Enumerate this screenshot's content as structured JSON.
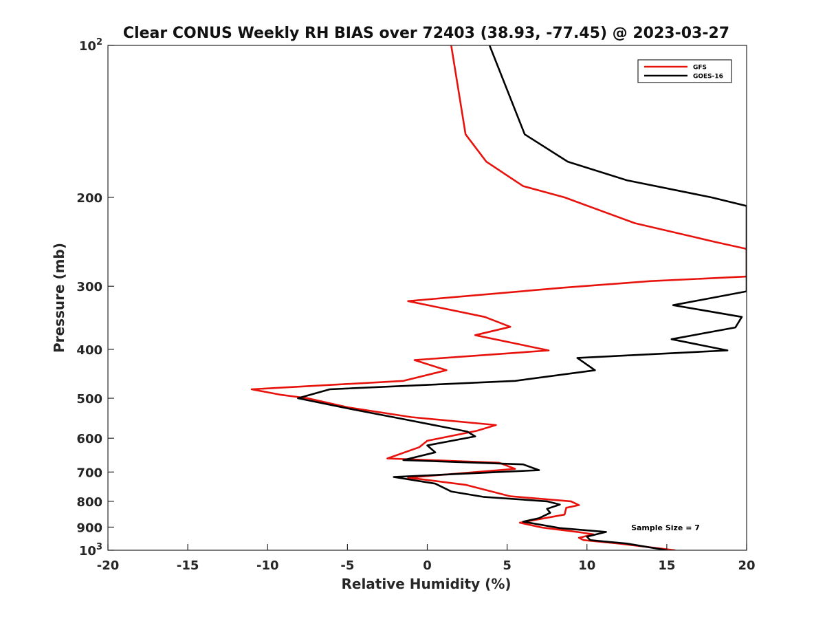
{
  "chart_data": {
    "type": "line",
    "title": "Clear CONUS Weekly RH BIAS over 72403 (38.93, -77.45) @ 2023-03-27",
    "xlabel": "Relative Humidity (%)",
    "ylabel": "Pressure (mb)",
    "xlim": [
      -20,
      20
    ],
    "ylim": [
      100,
      1000
    ],
    "y_scale": "log",
    "y_reversed": true,
    "xticks": [
      -20,
      -15,
      -10,
      -5,
      0,
      5,
      10,
      15,
      20
    ],
    "xtick_labels": [
      "-20",
      "-15",
      "-10",
      "-5",
      "0",
      "5",
      "10",
      "15",
      "20"
    ],
    "yticks": [
      100,
      200,
      300,
      400,
      500,
      600,
      700,
      800,
      900,
      1000
    ],
    "ytick_labels": [
      {
        "text": "10",
        "sup": "2"
      },
      {
        "text": "200",
        "sup": ""
      },
      {
        "text": "300",
        "sup": ""
      },
      {
        "text": "400",
        "sup": ""
      },
      {
        "text": "500",
        "sup": ""
      },
      {
        "text": "600",
        "sup": ""
      },
      {
        "text": "700",
        "sup": ""
      },
      {
        "text": "800",
        "sup": ""
      },
      {
        "text": "900",
        "sup": ""
      },
      {
        "text": "10",
        "sup": "3"
      }
    ],
    "grid": false,
    "legend_position": "top-right",
    "annotation": "Sample Size = 7",
    "series": [
      {
        "name": "GFS",
        "color": "#e8120c",
        "points": [
          [
            1.5,
            100
          ],
          [
            2.4,
            150
          ],
          [
            3.7,
            170
          ],
          [
            6.0,
            190
          ],
          [
            8.6,
            200
          ],
          [
            13.0,
            225
          ],
          [
            18.0,
            245
          ],
          [
            20.0,
            253
          ],
          [
            20.0,
            287
          ],
          [
            14.0,
            293
          ],
          [
            8.5,
            302
          ],
          [
            -1.2,
            321
          ],
          [
            3.6,
            345
          ],
          [
            5.2,
            361
          ],
          [
            3.0,
            375
          ],
          [
            7.6,
            402
          ],
          [
            -0.8,
            420
          ],
          [
            1.2,
            440
          ],
          [
            -1.5,
            462
          ],
          [
            -11.0,
            480
          ],
          [
            -9.2,
            492
          ],
          [
            -7.5,
            500
          ],
          [
            -5.0,
            521
          ],
          [
            -1.0,
            545
          ],
          [
            4.3,
            565
          ],
          [
            3.1,
            580
          ],
          [
            0.0,
            607
          ],
          [
            -0.5,
            625
          ],
          [
            -2.5,
            658
          ],
          [
            4.5,
            671
          ],
          [
            5.5,
            690
          ],
          [
            -1.2,
            718
          ],
          [
            2.4,
            742
          ],
          [
            5.2,
            782
          ],
          [
            9.0,
            800
          ],
          [
            9.5,
            814
          ],
          [
            8.7,
            824
          ],
          [
            8.6,
            850
          ],
          [
            5.8,
            882
          ],
          [
            7.2,
            902
          ],
          [
            9.4,
            920
          ],
          [
            10.4,
            930
          ],
          [
            9.5,
            945
          ],
          [
            9.8,
            955
          ],
          [
            12.0,
            970
          ],
          [
            15.5,
            1000
          ]
        ]
      },
      {
        "name": "GOES-16",
        "color": "#000000",
        "points": [
          [
            3.9,
            100
          ],
          [
            6.1,
            150
          ],
          [
            8.8,
            170
          ],
          [
            12.5,
            185
          ],
          [
            17.8,
            200
          ],
          [
            20.0,
            208
          ],
          [
            20.0,
            307
          ],
          [
            15.4,
            327
          ],
          [
            19.7,
            345
          ],
          [
            19.3,
            362
          ],
          [
            15.3,
            382
          ],
          [
            18.8,
            402
          ],
          [
            9.4,
            416
          ],
          [
            10.5,
            440
          ],
          [
            5.5,
            462
          ],
          [
            -6.1,
            480
          ],
          [
            -8.1,
            500
          ],
          [
            -4.8,
            525
          ],
          [
            -1.5,
            550
          ],
          [
            2.5,
            582
          ],
          [
            3.0,
            595
          ],
          [
            0.0,
            620
          ],
          [
            0.5,
            640
          ],
          [
            -1.5,
            663
          ],
          [
            6.0,
            676
          ],
          [
            7.0,
            694
          ],
          [
            -2.1,
            716
          ],
          [
            0.5,
            738
          ],
          [
            1.5,
            765
          ],
          [
            3.5,
            784
          ],
          [
            7.5,
            800
          ],
          [
            8.3,
            812
          ],
          [
            7.5,
            828
          ],
          [
            7.7,
            843
          ],
          [
            7.0,
            864
          ],
          [
            6.0,
            878
          ],
          [
            8.3,
            904
          ],
          [
            11.2,
            920
          ],
          [
            10.0,
            940
          ],
          [
            10.2,
            955
          ],
          [
            12.5,
            970
          ],
          [
            15.0,
            1000
          ]
        ]
      }
    ]
  }
}
